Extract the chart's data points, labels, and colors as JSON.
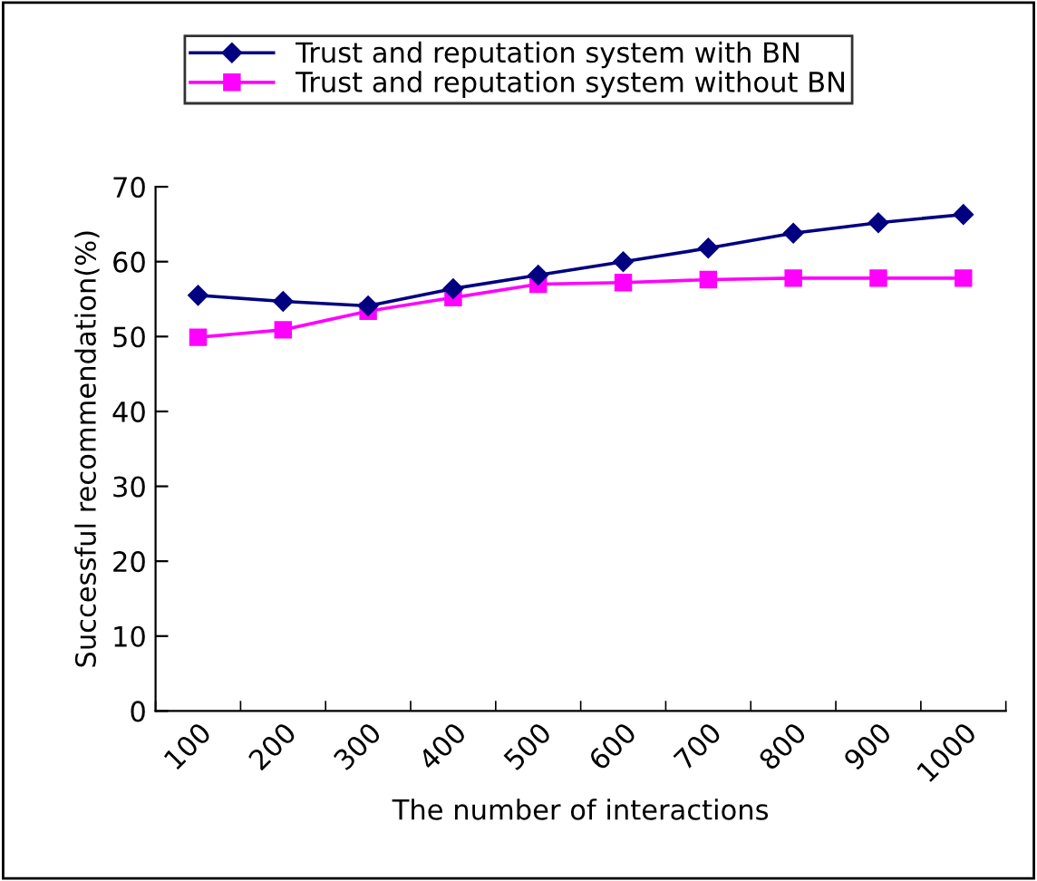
{
  "chart_data": {
    "type": "line",
    "xlabel": "The number of interactions",
    "ylabel": "Successful recommendation(%)",
    "categories": [
      "100",
      "200",
      "300",
      "400",
      "500",
      "600",
      "700",
      "800",
      "900",
      "1000"
    ],
    "series": [
      {
        "name": "Trust and reputation system with BN",
        "color": "#000080",
        "marker": "diamond",
        "values": [
          55.5,
          54.7,
          54.1,
          56.4,
          58.2,
          60,
          61.8,
          63.8,
          65.2,
          66.3
        ]
      },
      {
        "name": "Trust and reputation system without BN",
        "color": "#ff00ff",
        "marker": "square",
        "values": [
          49.9,
          50.9,
          53.4,
          55.2,
          57,
          57.2,
          57.6,
          57.8,
          57.8,
          57.8
        ]
      }
    ],
    "ylim": [
      0,
      70
    ],
    "yticks": [
      0,
      10,
      20,
      30,
      40,
      50,
      60,
      70
    ],
    "grid": false,
    "legend": "top"
  }
}
